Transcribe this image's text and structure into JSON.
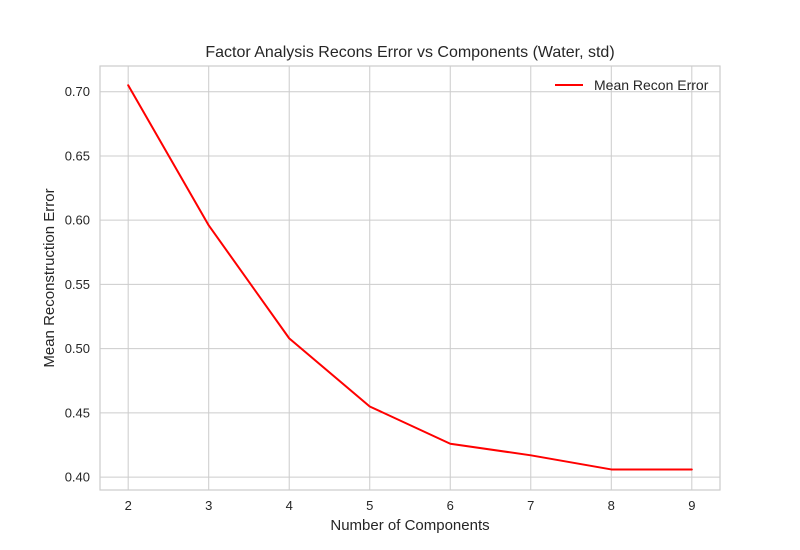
{
  "chart_data": {
    "type": "line",
    "title": "Factor Analysis Recons Error vs Components (Water, std)",
    "xlabel": "Number of Components",
    "ylabel": "Mean Reconstruction Error",
    "x": [
      2,
      3,
      4,
      5,
      6,
      7,
      8,
      9
    ],
    "series": [
      {
        "name": "Mean Recon Error",
        "color": "#ff0000",
        "values": [
          0.705,
          0.596,
          0.508,
          0.455,
          0.426,
          0.417,
          0.406,
          0.406
        ]
      }
    ],
    "xlim": [
      1.65,
      9.35
    ],
    "ylim": [
      0.39,
      0.72
    ],
    "xticks": [
      "2",
      "3",
      "4",
      "5",
      "6",
      "7",
      "8",
      "9"
    ],
    "yticks": [
      "0.40",
      "0.45",
      "0.50",
      "0.55",
      "0.60",
      "0.65",
      "0.70"
    ],
    "grid": true,
    "legend_position": "top-right",
    "style": {
      "grid_color": "#cccccc",
      "frame_color": "#cccccc",
      "text_color": "#262626"
    }
  }
}
